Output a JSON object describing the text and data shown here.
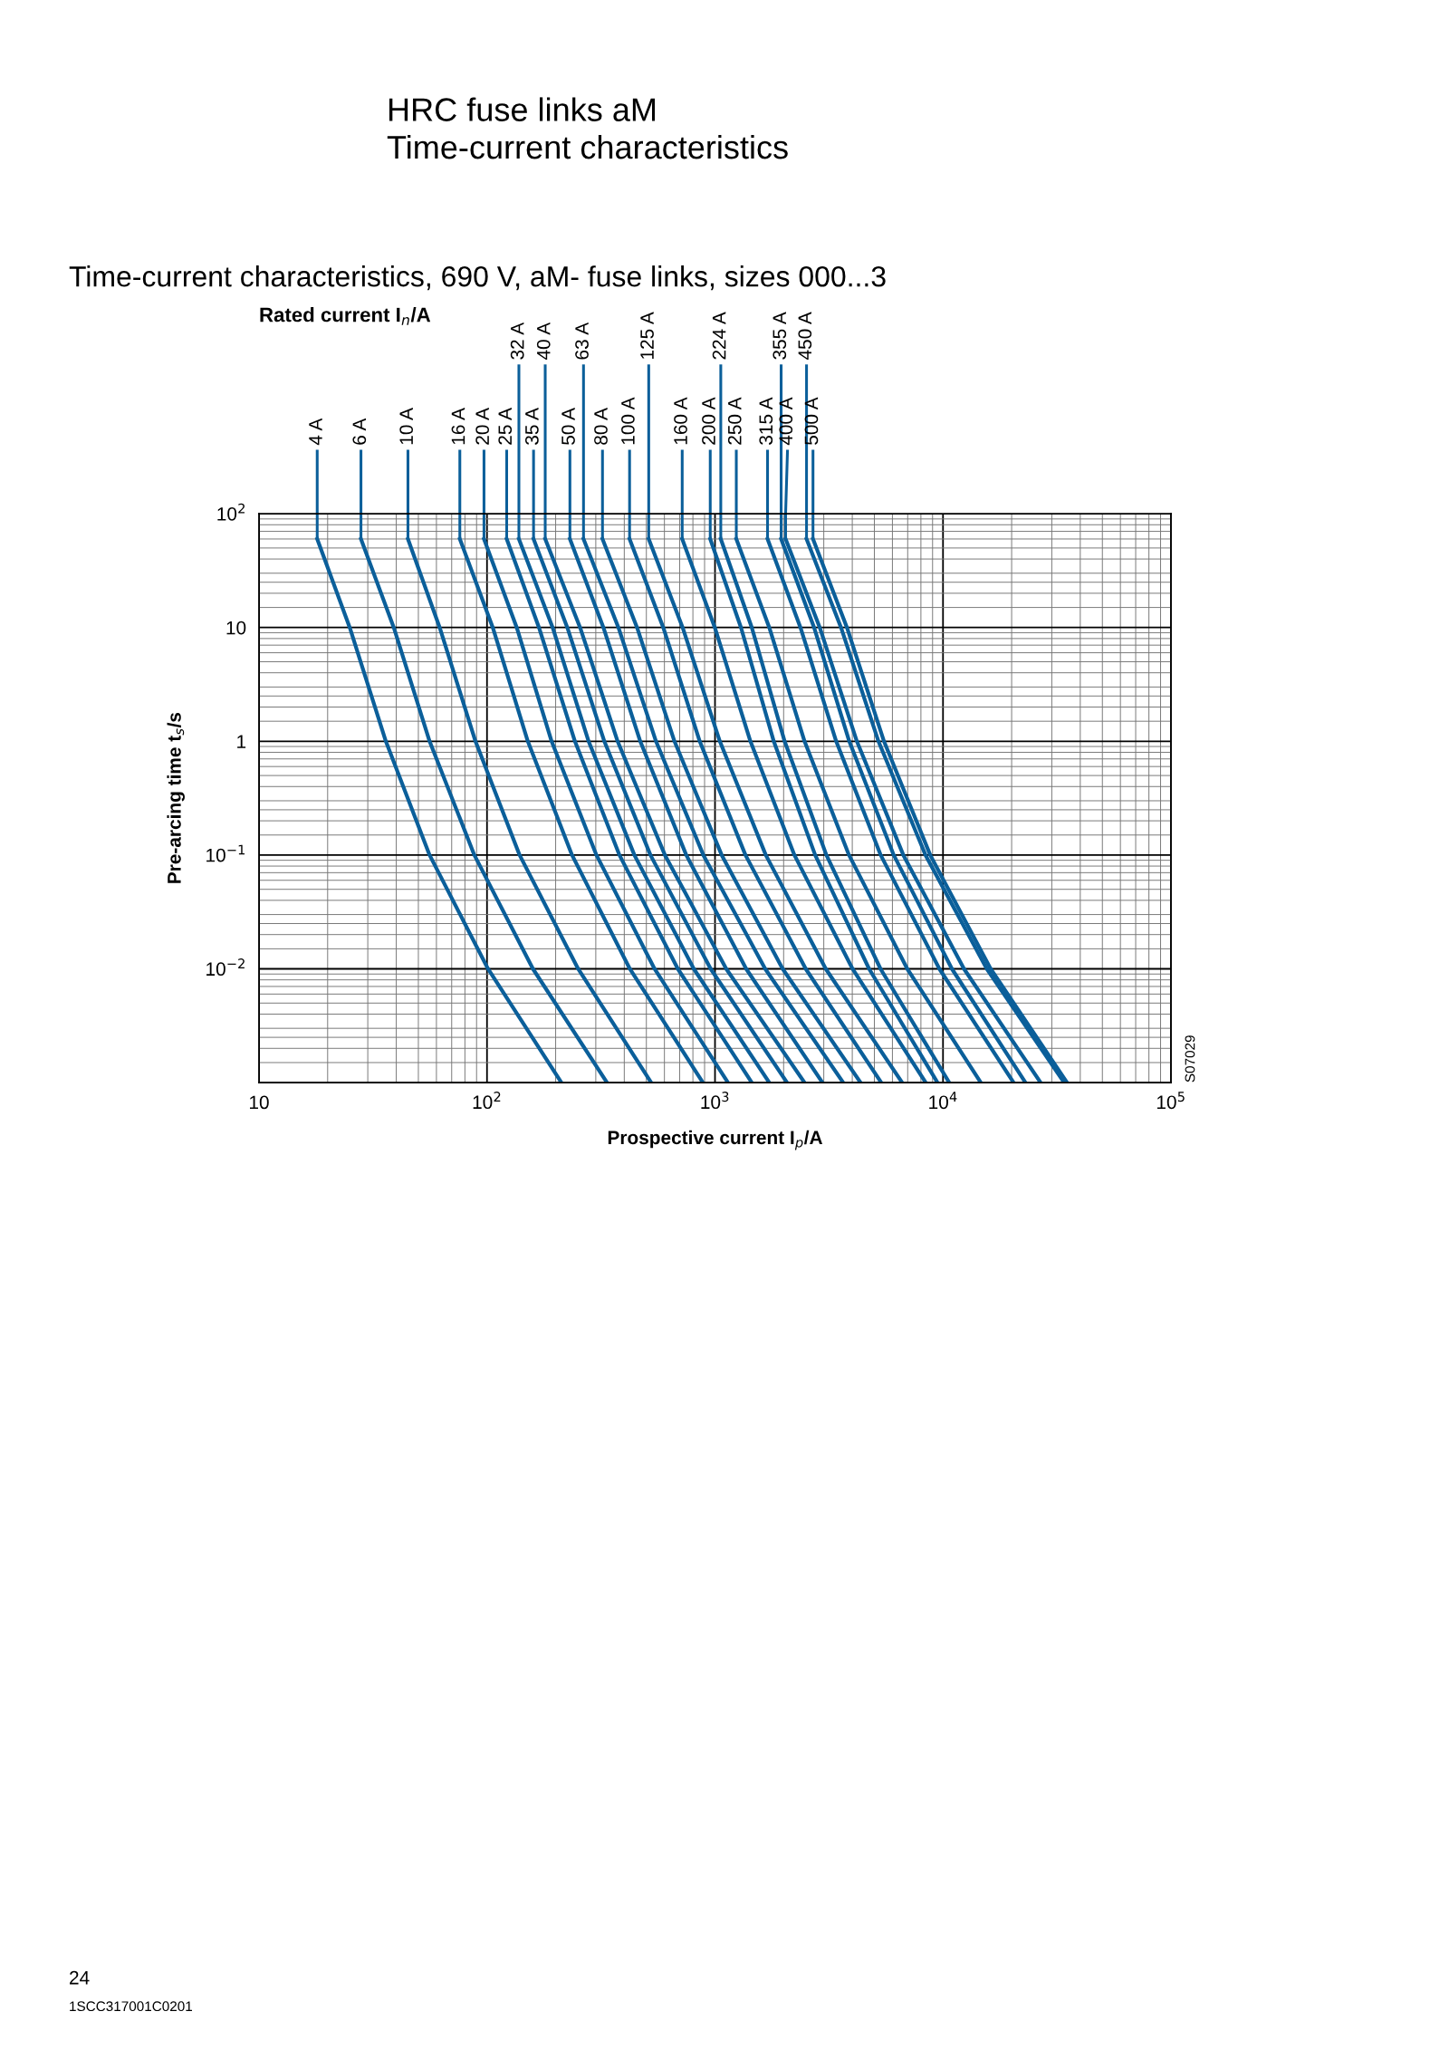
{
  "chart_data": {
    "type": "line",
    "title": "HRC fuse links aM\nTime-current characteristics",
    "subtitle": "Time-current characteristics, 690 V, aM- fuse links, sizes 000...3",
    "xlabel": "Prospective current I$_{p}$/A",
    "ylabel": "Pre-arcing time t$_{s}$/s",
    "legend_title": "Rated current I$_{n}$/A",
    "annotations": [
      "S07029",
      "24",
      "1SCC317001C0201"
    ],
    "log": "xy",
    "grid": true,
    "legend": false,
    "marker": "none",
    "line_style": "solid",
    "xlim": [
      10,
      100000
    ],
    "ylim": [
      0.001,
      100
    ],
    "xticks": [
      10,
      {
        "value": 100,
        "label": "10$^{2}$"
      },
      {
        "value": 1000,
        "label": "10$^{3}$"
      },
      {
        "value": 10000,
        "label": "10$^{4}$"
      },
      {
        "value": 100000,
        "label": "10$^{5}$"
      }
    ],
    "yticks": [
      {
        "value": 0.001,
        "label": null
      },
      {
        "value": 0.01,
        "label": "10$^{−2}$"
      },
      {
        "value": 0.1,
        "label": "10$^{−1}$"
      },
      1,
      10,
      {
        "value": 100,
        "label": "10$^{2}$"
      }
    ],
    "series": [
      {
        "name": "4 A",
        "color": "#0b5f9a",
        "x": [
          18,
          25,
          36,
          56,
          101,
          212
        ],
        "values": [
          60,
          10,
          1,
          0.1,
          0.01,
          0.001
        ]
      },
      {
        "name": "6 A",
        "color": "#0b5f9a",
        "x": [
          28,
          39,
          56,
          88,
          159,
          336
        ],
        "values": [
          60,
          10,
          1,
          0.1,
          0.01,
          0.001
        ]
      },
      {
        "name": "10 A",
        "color": "#0b5f9a",
        "x": [
          45,
          62,
          89,
          139,
          251,
          525
        ],
        "values": [
          60,
          10,
          1,
          0.1,
          0.01,
          0.001
        ]
      },
      {
        "name": "16 A",
        "color": "#0b5f9a",
        "x": [
          76,
          106,
          151,
          236,
          423,
          885
        ],
        "values": [
          60,
          10,
          1,
          0.1,
          0.01,
          0.001
        ]
      },
      {
        "name": "20 A",
        "color": "#0b5f9a",
        "x": [
          97,
          135,
          192,
          302,
          543,
          1140
        ],
        "values": [
          60,
          10,
          1,
          0.1,
          0.01,
          0.001
        ]
      },
      {
        "name": "25 A",
        "color": "#0b5f9a",
        "x": [
          122,
          169,
          243,
          381,
          687,
          1450
        ],
        "values": [
          60,
          10,
          1,
          0.1,
          0.01,
          0.001
        ]
      },
      {
        "name": "32 A",
        "color": "#0b5f9a",
        "x": [
          138,
          194,
          279,
          443,
          807,
          1730
        ],
        "values": [
          60,
          10,
          1,
          0.1,
          0.01,
          0.001
        ]
      },
      {
        "name": "35 A",
        "color": "#0b5f9a",
        "x": [
          160,
          225,
          327,
          521,
          957,
          2070
        ],
        "values": [
          60,
          10,
          1,
          0.1,
          0.01,
          0.001
        ]
      },
      {
        "name": "40 A",
        "color": "#0b5f9a",
        "x": [
          180,
          256,
          374,
          603,
          1120,
          2470
        ],
        "values": [
          60,
          10,
          1,
          0.1,
          0.01,
          0.001
        ]
      },
      {
        "name": "50 A",
        "color": "#0b5f9a",
        "x": [
          231,
          324,
          470,
          748,
          1370,
          2960
        ],
        "values": [
          60,
          10,
          1,
          0.1,
          0.01,
          0.001
        ]
      },
      {
        "name": "63 A",
        "color": "#0b5f9a",
        "x": [
          265,
          377,
          551,
          889,
          1660,
          3650
        ],
        "values": [
          60,
          10,
          1,
          0.1,
          0.01,
          0.001
        ]
      },
      {
        "name": "80 A",
        "color": "#0b5f9a",
        "x": [
          321,
          455,
          664,
          1070,
          1980,
          4350
        ],
        "values": [
          60,
          10,
          1,
          0.1,
          0.01,
          0.001
        ]
      },
      {
        "name": "100 A",
        "color": "#0b5f9a",
        "x": [
          422,
          593,
          857,
          1360,
          2500,
          5360
        ],
        "values": [
          60,
          10,
          1,
          0.1,
          0.01,
          0.001
        ]
      },
      {
        "name": "125 A",
        "color": "#0b5f9a",
        "x": [
          512,
          721,
          1050,
          1670,
          3060,
          6620
        ],
        "values": [
          60,
          10,
          1,
          0.1,
          0.01,
          0.001
        ]
      },
      {
        "name": "160 A",
        "color": "#0b5f9a",
        "x": [
          718,
          998,
          1430,
          2230,
          4010,
          8400
        ],
        "values": [
          60,
          10,
          1,
          0.1,
          0.01,
          0.001
        ]
      },
      {
        "name": "200 A",
        "color": "#0b5f9a",
        "x": [
          953,
          1300,
          1810,
          2750,
          4740,
          9460
        ],
        "values": [
          60,
          10,
          1,
          0.1,
          0.01,
          0.001
        ]
      },
      {
        "name": "224 A",
        "color": "#0b5f9a",
        "x": [
          1060,
          1450,
          2020,
          3080,
          5320,
          10650
        ],
        "values": [
          60,
          10,
          1,
          0.1,
          0.01,
          0.001
        ]
      },
      {
        "name": "250 A",
        "color": "#0b5f9a",
        "x": [
          1240,
          1730,
          2470,
          3870,
          6970,
          14650
        ],
        "values": [
          60,
          10,
          1,
          0.1,
          0.01,
          0.001
        ]
      },
      {
        "name": "315 A",
        "color": "#0b5f9a",
        "x": [
          1700,
          2370,
          3400,
          5330,
          9640,
          20400
        ],
        "values": [
          60,
          10,
          1,
          0.1,
          0.01,
          0.001
        ]
      },
      {
        "name": "355 A",
        "color": "#0b5f9a",
        "x": [
          1950,
          2720,
          3880,
          6080,
          10940,
          23000
        ],
        "values": [
          60,
          10,
          1,
          0.1,
          0.01,
          0.001
        ]
      },
      {
        "name": "400 A",
        "color": "#0b5f9a",
        "x": [
          2040,
          2880,
          4190,
          6700,
          12360,
          26800
        ],
        "values": [
          60,
          10,
          1,
          0.1,
          0.01,
          0.001
        ]
      },
      {
        "name": "450 A",
        "color": "#0b5f9a",
        "x": [
          2520,
          3570,
          5210,
          8380,
          15560,
          34000
        ],
        "values": [
          60,
          10,
          1,
          0.1,
          0.01,
          0.001
        ]
      },
      {
        "name": "500 A",
        "color": "#0b5f9a",
        "x": [
          2690,
          3790,
          5510,
          8790,
          16180,
          35000
        ],
        "values": [
          60,
          10,
          1,
          0.1,
          0.01,
          0.001
        ]
      }
    ]
  }
}
